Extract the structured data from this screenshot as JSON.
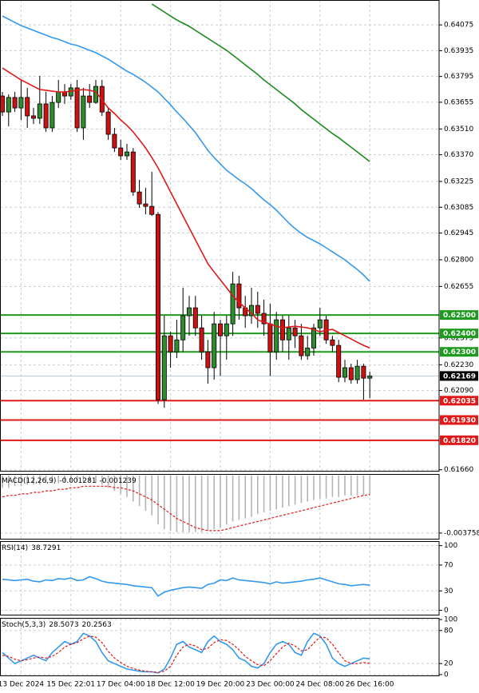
{
  "chart_data": [
    {
      "type": "candlestick",
      "categories": [
        null,
        null,
        null,
        "13 Dec 2024",
        null,
        null,
        null,
        null,
        null,
        null,
        null,
        "15 Dec 22:01",
        null,
        null,
        null,
        null,
        null,
        null,
        null,
        "17 Dec 04:00",
        null,
        null,
        null,
        null,
        null,
        null,
        null,
        "18 Dec 12:00",
        null,
        null,
        null,
        null,
        null,
        null,
        null,
        "19 Dec 20:00",
        null,
        null,
        null,
        null,
        null,
        null,
        null,
        "23 Dec 00:00",
        null,
        null,
        null,
        null,
        null,
        null,
        null,
        "24 Dec 08:00",
        null,
        null,
        null,
        null,
        null,
        null,
        null,
        "26 Dec 16:00"
      ],
      "open": [
        0.63689,
        0.63602,
        0.63681,
        0.63624,
        0.63681,
        0.63581,
        0.63568,
        0.63646,
        0.63516,
        0.63654,
        0.63711,
        0.63689,
        0.63733,
        0.63516,
        0.63689,
        0.63654,
        0.63741,
        0.63602,
        0.63481,
        0.63407,
        0.63364,
        0.63385,
        0.63168,
        0.63103,
        0.6309,
        0.63046,
        0.6204,
        0.62387,
        0.623,
        0.62365,
        0.62496,
        0.62539,
        0.6243,
        0.623,
        0.62214,
        0.62452,
        0.62387,
        0.62452,
        0.62669,
        0.62539,
        0.62496,
        0.62552,
        0.62509,
        0.62452,
        0.623,
        0.62474,
        0.62365,
        0.6243,
        0.62387,
        0.62279,
        0.62321,
        0.6243,
        0.62474,
        0.62365,
        0.62335,
        0.62162,
        0.62214,
        0.62149,
        0.62222,
        0.62157
      ],
      "high": [
        0.63711,
        0.63698,
        0.63711,
        0.63776,
        0.63733,
        0.63624,
        0.63798,
        0.63711,
        0.63689,
        0.63776,
        0.63754,
        0.63754,
        0.63776,
        0.63733,
        0.63754,
        0.63776,
        0.63776,
        0.63624,
        0.63516,
        0.63451,
        0.63429,
        0.63407,
        0.63234,
        0.6319,
        0.63277,
        0.63059,
        0.62496,
        0.62409,
        0.62474,
        0.62648,
        0.62604,
        0.62604,
        0.62496,
        0.62365,
        0.62517,
        0.62474,
        0.62496,
        0.62734,
        0.62713,
        0.62604,
        0.62648,
        0.62626,
        0.62583,
        0.62561,
        0.62517,
        0.62496,
        0.62496,
        0.62474,
        0.62452,
        0.62387,
        0.62452,
        0.62539,
        0.62496,
        0.62387,
        0.62365,
        0.62257,
        0.62235,
        0.62257,
        0.62235,
        0.62192
      ],
      "low": [
        0.63581,
        0.63524,
        0.63602,
        0.63559,
        0.63516,
        0.63537,
        0.63537,
        0.63494,
        0.63494,
        0.63624,
        0.63646,
        0.63668,
        0.63494,
        0.63451,
        0.63624,
        0.63646,
        0.63581,
        0.63451,
        0.63385,
        0.63342,
        0.63342,
        0.63147,
        0.63082,
        0.63046,
        0.63038,
        0.62018,
        0.61997,
        0.62214,
        0.62266,
        0.623,
        0.62387,
        0.62387,
        0.62257,
        0.62127,
        0.62149,
        0.6217,
        0.62257,
        0.62387,
        0.62474,
        0.6243,
        0.62452,
        0.6243,
        0.62387,
        0.6217,
        0.62257,
        0.623,
        0.62257,
        0.62321,
        0.62257,
        0.62257,
        0.62279,
        0.62387,
        0.62344,
        0.623,
        0.62135,
        0.62135,
        0.62127,
        0.62127,
        0.6204,
        0.62049
      ],
      "close": [
        0.63602,
        0.63681,
        0.63624,
        0.63681,
        0.63581,
        0.63568,
        0.63646,
        0.63516,
        0.63654,
        0.63711,
        0.63689,
        0.63733,
        0.63516,
        0.63689,
        0.63654,
        0.63741,
        0.63602,
        0.63481,
        0.63407,
        0.63364,
        0.63385,
        0.63168,
        0.63103,
        0.6309,
        0.63046,
        0.6204,
        0.62387,
        0.623,
        0.62365,
        0.62496,
        0.62539,
        0.6243,
        0.623,
        0.62214,
        0.62452,
        0.62387,
        0.62452,
        0.62669,
        0.62539,
        0.62496,
        0.62552,
        0.62509,
        0.62452,
        0.623,
        0.62474,
        0.62365,
        0.6243,
        0.62387,
        0.62279,
        0.62321,
        0.6243,
        0.62474,
        0.62365,
        0.62335,
        0.62162,
        0.62214,
        0.62149,
        0.62222,
        0.62157,
        0.62169
      ],
      "up_color": "#2e8b2e",
      "down_color": "#cc1111",
      "series": [
        {
          "color": "#e01818",
          "style": "solid",
          "values": [
            0.63841,
            0.63819,
            0.63798,
            0.63776,
            0.63759,
            0.63741,
            0.63724,
            0.6372,
            0.63715,
            0.63711,
            0.63711,
            0.63715,
            0.6372,
            0.63724,
            0.6372,
            0.63711,
            0.63668,
            0.63624,
            0.63594,
            0.63559,
            0.63529,
            0.63494,
            0.63451,
            0.63407,
            0.63355,
            0.63299,
            0.63234,
            0.63168,
            0.63103,
            0.63038,
            0.62973,
            0.62908,
            0.62843,
            0.62778,
            0.62734,
            0.62691,
            0.62648,
            0.62604,
            0.62569,
            0.62539,
            0.62509,
            0.62474,
            0.62461,
            0.62452,
            0.62439,
            0.6243,
            0.62435,
            0.62439,
            0.62435,
            0.6243,
            0.62422,
            0.62409,
            0.62418,
            0.62422,
            0.62405,
            0.62387,
            0.6237,
            0.62352,
            0.62335,
            0.62321
          ]
        },
        {
          "color": "#3399ee",
          "style": "solid",
          "values": [
            0.64123,
            0.64106,
            0.64088,
            0.64071,
            0.64058,
            0.64045,
            0.64032,
            0.64019,
            0.64006,
            0.63997,
            0.63984,
            0.63971,
            0.63963,
            0.6395,
            0.63937,
            0.63924,
            0.63906,
            0.63889,
            0.63867,
            0.63845,
            0.63824,
            0.63806,
            0.63785,
            0.63763,
            0.63737,
            0.63711,
            0.63676,
            0.63641,
            0.63602,
            0.63568,
            0.63529,
            0.6349,
            0.63442,
            0.63394,
            0.63355,
            0.6332,
            0.63286,
            0.6326,
            0.63234,
            0.63212,
            0.63186,
            0.63155,
            0.63125,
            0.63099,
            0.63069,
            0.63034,
            0.62999,
            0.62969,
            0.62943,
            0.62921,
            0.62904,
            0.62886,
            0.62865,
            0.62843,
            0.62821,
            0.628,
            0.62773,
            0.62747,
            0.62717,
            0.62682
          ]
        },
        {
          "color": "#1e8a1e",
          "style": "solid",
          "values": [
            null,
            null,
            null,
            null,
            null,
            null,
            null,
            null,
            null,
            null,
            null,
            null,
            null,
            null,
            null,
            null,
            null,
            null,
            null,
            null,
            null,
            null,
            null,
            null,
            0.64188,
            0.64167,
            0.64145,
            0.64123,
            0.64102,
            0.64084,
            0.64067,
            0.64045,
            0.64023,
            0.64002,
            0.6398,
            0.63958,
            0.63937,
            0.63911,
            0.63885,
            0.63858,
            0.63832,
            0.63806,
            0.63776,
            0.6375,
            0.63724,
            0.63698,
            0.63672,
            0.63646,
            0.63615,
            0.63589,
            0.63563,
            0.63537,
            0.63511,
            0.63485,
            0.63463,
            0.63437,
            0.63411,
            0.63385,
            0.63359,
            0.63333
          ]
        }
      ],
      "levels": [
        {
          "value": 0.625,
          "label": "0.62500",
          "color": "#1e9a1e"
        },
        {
          "value": 0.624,
          "label": "0.62400",
          "color": "#1e9a1e"
        },
        {
          "value": 0.623,
          "label": "0.62300",
          "color": "#1e9a1e"
        },
        {
          "value": 0.62169,
          "color": "#000000"
        },
        {
          "value": 0.62035,
          "color": "#e01818"
        },
        {
          "value": 0.6193,
          "label": "0.61930",
          "color": "#e01818"
        },
        {
          "value": 0.6182,
          "label": "0.61820",
          "color": "#e01818"
        }
      ],
      "ylim": [
        0.6165,
        0.6421
      ],
      "yticks": [
        0.64075,
        0.63935,
        0.63795,
        0.63655,
        {
          "value": 0.6351,
          "label": "0.63510"
        },
        {
          "value": 0.6337,
          "label": "0.63370"
        },
        0.63225,
        0.63085,
        0.62945,
        {
          "value": 0.628,
          "label": "0.62800"
        },
        0.62655,
        0.62375,
        {
          "value": 0.6223,
          "label": "0.62230"
        },
        {
          "value": 0.6209,
          "label": "0.62090"
        },
        {
          "value": 0.6166,
          "label": "0.61660"
        }
      ],
      "grid": true
    },
    {
      "type": "bar",
      "label": "MACD(12,26,9)",
      "series": [
        {
          "color": "#b4b4b4",
          "style": "bar",
          "values": [
            -0.0008,
            -0.0008,
            -0.0007,
            -0.0007,
            -0.0006,
            -0.0006,
            -0.0006,
            -0.0005,
            -0.0005,
            -0.0005,
            -0.0004,
            -0.0004,
            -0.0004,
            -0.0004,
            -0.0004,
            -0.0005,
            -0.0006,
            -0.0008,
            -0.001,
            -0.0012,
            -0.0014,
            -0.0017,
            -0.002,
            -0.0023,
            -0.0026,
            -0.0032,
            -0.0035,
            -0.0036,
            -0.0037,
            -0.0037,
            -0.0037,
            -0.0037,
            -0.0037,
            -0.0036,
            -0.0035,
            -0.0034,
            -0.0032,
            -0.003,
            -0.0029,
            -0.0028,
            -0.0027,
            -0.0025,
            -0.0024,
            -0.0023,
            -0.0022,
            -0.0021,
            -0.002,
            -0.0019,
            -0.0018,
            -0.0017,
            -0.0016,
            -0.0015,
            -0.0015,
            -0.0014,
            -0.0014,
            -0.0013,
            -0.0013,
            -0.0013,
            -0.0013,
            -0.001281
          ]
        },
        {
          "color": "#e01818",
          "style": "dashed",
          "values": [
            -0.0014,
            -0.0013,
            -0.0013,
            -0.0012,
            -0.0012,
            -0.0011,
            -0.0011,
            -0.001,
            -0.001,
            -0.0009,
            -0.0009,
            -0.0008,
            -0.0008,
            -0.0007,
            -0.0007,
            -0.0007,
            -0.0007,
            -0.0007,
            -0.0008,
            -0.0008,
            -0.0009,
            -0.001,
            -0.0012,
            -0.0014,
            -0.0016,
            -0.0019,
            -0.0022,
            -0.0025,
            -0.0028,
            -0.003,
            -0.0032,
            -0.0034,
            -0.0035,
            -0.0036,
            -0.0036,
            -0.0036,
            -0.0035,
            -0.0034,
            -0.0033,
            -0.0032,
            -0.0031,
            -0.003,
            -0.0029,
            -0.0028,
            -0.0027,
            -0.0026,
            -0.0025,
            -0.0024,
            -0.0023,
            -0.0022,
            -0.0021,
            -0.002,
            -0.0019,
            -0.0018,
            -0.0017,
            -0.0016,
            -0.0015,
            -0.0014,
            -0.0013,
            -0.001239
          ]
        }
      ],
      "ylim": [
        -0.00418,
        0.0001
      ],
      "yticks": [
        -0.003758
      ],
      "grid": true
    },
    {
      "type": "line",
      "label": "RSI(14)",
      "series": [
        {
          "color": "#3399ee",
          "style": "solid",
          "values": [
            48,
            47,
            46,
            47,
            48,
            45,
            44,
            47,
            46,
            49,
            48,
            50,
            46,
            47,
            52,
            49,
            45,
            43,
            42,
            41,
            40,
            38,
            37,
            36,
            35,
            22,
            28,
            31,
            33,
            35,
            36,
            35,
            34,
            40,
            42,
            47,
            46,
            50,
            47,
            46,
            45,
            44,
            43,
            41,
            44,
            42,
            43,
            44,
            45,
            47,
            48,
            50,
            47,
            44,
            41,
            40,
            38,
            39,
            40,
            38.7291
          ]
        }
      ],
      "ylim": [
        -8,
        107
      ],
      "yticks": [
        100,
        70,
        30,
        0
      ],
      "grid": true
    },
    {
      "type": "line",
      "label": "Stoch(5,3,3)",
      "series": [
        {
          "color": "#3399ee",
          "style": "solid",
          "values": [
            40,
            30,
            20,
            25,
            30,
            35,
            30,
            25,
            40,
            50,
            60,
            55,
            60,
            75,
            70,
            60,
            40,
            25,
            20,
            15,
            10,
            8,
            6,
            5,
            5,
            3,
            10,
            30,
            55,
            60,
            50,
            45,
            40,
            60,
            70,
            60,
            55,
            45,
            30,
            25,
            15,
            12,
            20,
            40,
            55,
            60,
            55,
            40,
            35,
            60,
            75,
            70,
            55,
            30,
            20,
            15,
            20,
            25,
            30,
            28.5073
          ]
        },
        {
          "color": "#e01818",
          "style": "dashed",
          "values": [
            35,
            33,
            28,
            25,
            27,
            30,
            32,
            30,
            33,
            40,
            50,
            55,
            58,
            65,
            70,
            68,
            58,
            42,
            30,
            22,
            15,
            11,
            8,
            6,
            5,
            4,
            6,
            15,
            35,
            50,
            55,
            52,
            45,
            48,
            58,
            63,
            62,
            55,
            45,
            33,
            25,
            18,
            16,
            25,
            38,
            50,
            57,
            52,
            43,
            45,
            57,
            68,
            67,
            55,
            40,
            25,
            20,
            20,
            22,
            20.2563
          ]
        }
      ],
      "ylim": [
        -3,
        103
      ],
      "yticks": [
        100,
        80,
        20,
        0
      ],
      "grid": true
    }
  ]
}
